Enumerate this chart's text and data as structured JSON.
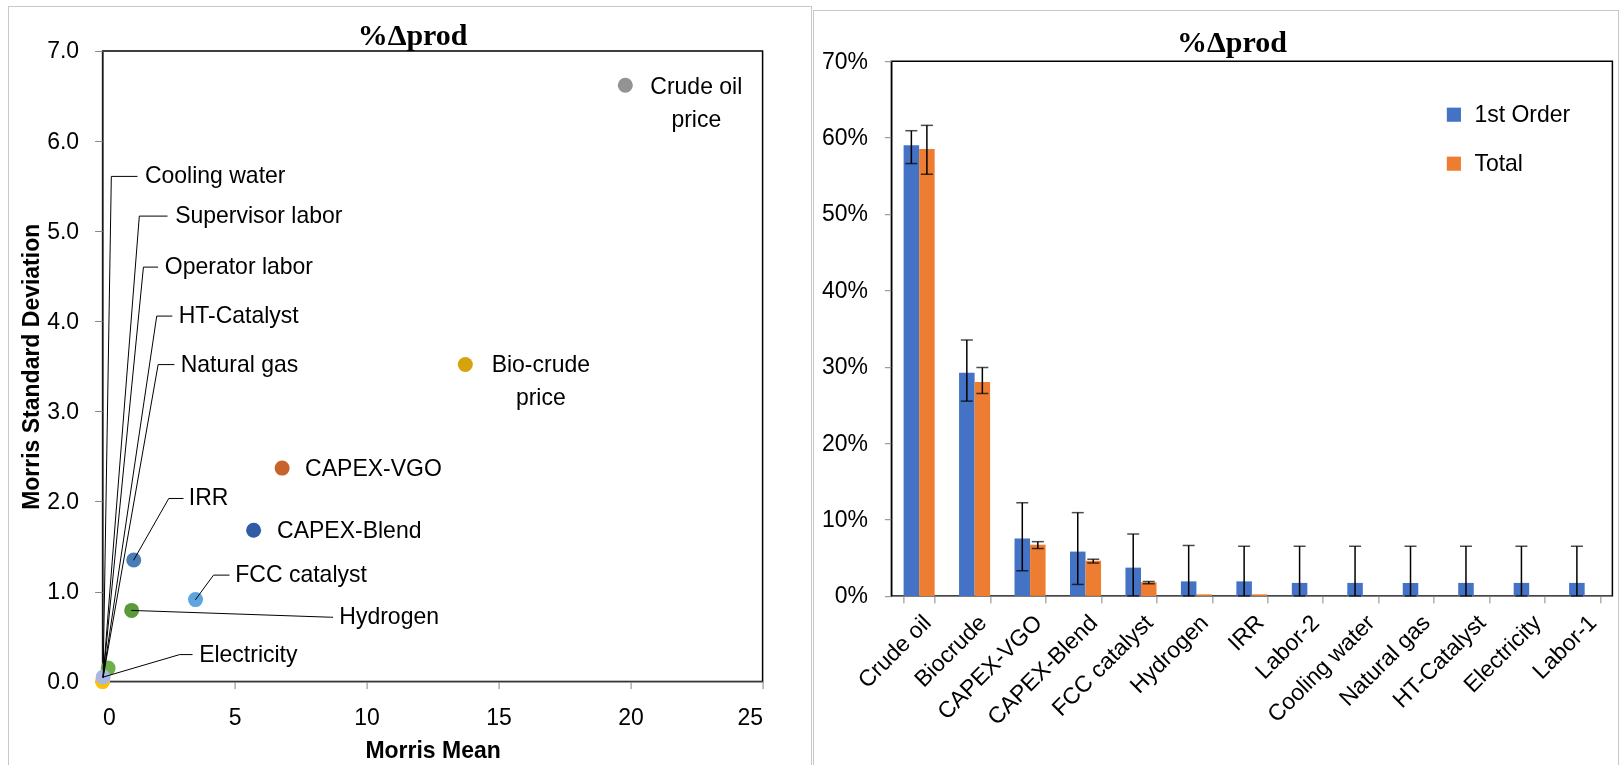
{
  "chart_data": [
    {
      "type": "scatter",
      "title": "%Δprod",
      "xlabel": "Morris Mean",
      "ylabel": "Morris Standard Deviation",
      "x": [
        19.8,
        13.74,
        6.8,
        5.72,
        1.18,
        3.52,
        1.1,
        0,
        0.21,
        0.02
      ],
      "values": [
        6.62,
        3.52,
        2.37,
        1.68,
        1.35,
        0.91,
        0.79,
        0,
        0.15,
        0.05
      ],
      "colors": [
        "#939393",
        "#d6a30c",
        "#c8632b",
        "#305ca5",
        "#4a7db5",
        "#5ea5e0",
        "#5b9a3b",
        "#ffc000",
        "#6db04a",
        "#a8b7e2"
      ],
      "xlim": [
        0,
        25
      ],
      "xticks": [
        0,
        5,
        10,
        15,
        20,
        25
      ],
      "ylim": [
        0,
        7
      ],
      "yticks": [
        {
          "value": 0,
          "label": "0.0"
        },
        {
          "value": 1,
          "label": "1.0"
        },
        {
          "value": 2,
          "label": "2.0"
        },
        {
          "value": 3,
          "label": "3.0"
        },
        {
          "value": 4,
          "label": "4.0"
        },
        {
          "value": 5,
          "label": "5.0"
        },
        {
          "value": 6,
          "label": "6.0"
        },
        {
          "value": 7,
          "label": "7.0"
        }
      ],
      "marker": "circle",
      "annotations": [
        {
          "text": "Crude oil price",
          "x": 19.8,
          "y": 6.62
        },
        {
          "text": "Bio-crude price",
          "x": 13.74,
          "y": 3.52
        },
        {
          "text": "Cooling water",
          "x": 0.02,
          "y": 0.05
        },
        {
          "text": "Supervisor labor",
          "x": 0.02,
          "y": 0.05
        },
        {
          "text": "Operator labor",
          "x": 0.02,
          "y": 0.05
        },
        {
          "text": "HT-Catalyst",
          "x": 0.02,
          "y": 0.05
        },
        {
          "text": "Natural gas",
          "x": 0.02,
          "y": 0.05
        },
        {
          "text": "CAPEX-VGO",
          "x": 6.8,
          "y": 2.37
        },
        {
          "text": "IRR",
          "x": 1.18,
          "y": 1.35
        },
        {
          "text": "CAPEX-Blend",
          "x": 5.72,
          "y": 1.68
        },
        {
          "text": "FCC catalyst",
          "x": 3.52,
          "y": 0.91
        },
        {
          "text": "Hydrogen",
          "x": 1.1,
          "y": 0.79
        },
        {
          "text": "Electricity",
          "x": 0.02,
          "y": 0.05
        }
      ]
    },
    {
      "type": "bar",
      "title": "%Δprod",
      "categories": [
        "Crude oil",
        "Biocrude",
        "CAPEX-VGO",
        "CAPEX-Blend",
        "FCC catalyst",
        "Hydrogen",
        "IRR",
        "Labor-2",
        "Cooling water",
        "Natural gas",
        "HT-Catalyst",
        "Electricity",
        "Labor-1"
      ],
      "series": [
        {
          "name": "1st Order",
          "color": "#4472c4",
          "values": [
            59.0,
            29.2,
            7.5,
            5.8,
            3.7,
            1.9,
            1.9,
            1.7,
            1.7,
            1.7,
            1.7,
            1.7,
            1.7
          ],
          "errors": [
            [
              56.6,
              60.9
            ],
            [
              25.5,
              33.5
            ],
            [
              3.3,
              12.2
            ],
            [
              1.5,
              10.9
            ],
            [
              0,
              8.1
            ],
            [
              0,
              6.6
            ],
            [
              0,
              6.5
            ],
            [
              0,
              6.5
            ],
            [
              0,
              6.5
            ],
            [
              0,
              6.5
            ],
            [
              0,
              6.5
            ],
            [
              0,
              6.5
            ],
            [
              0,
              6.5
            ]
          ]
        },
        {
          "name": "Total",
          "color": "#ed7d31",
          "values": [
            58.5,
            28.0,
            6.7,
            4.6,
            1.8,
            0.2,
            0.2,
            null,
            null,
            null,
            null,
            null,
            null
          ],
          "errors": [
            [
              55.2,
              61.6
            ],
            [
              26.5,
              29.9
            ],
            [
              6.2,
              7.1
            ],
            [
              4.3,
              4.8
            ],
            [
              1.6,
              1.9
            ],
            null,
            null,
            null,
            null,
            null,
            null,
            null,
            null
          ]
        }
      ],
      "ylim": [
        0,
        70
      ],
      "yticks": [
        {
          "value": 0,
          "label": "0%"
        },
        {
          "value": 10,
          "label": "10%"
        },
        {
          "value": 20,
          "label": "20%"
        },
        {
          "value": 30,
          "label": "30%"
        },
        {
          "value": 40,
          "label": "40%"
        },
        {
          "value": 50,
          "label": "50%"
        },
        {
          "value": 60,
          "label": "60%"
        },
        {
          "value": 70,
          "label": "70%"
        }
      ],
      "legend": "top right"
    }
  ]
}
